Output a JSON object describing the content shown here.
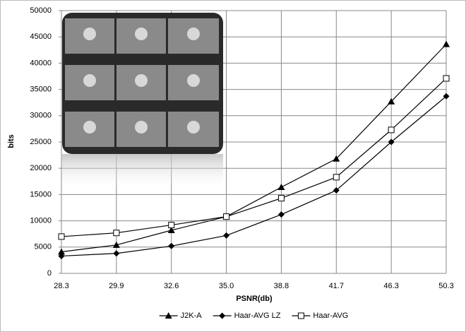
{
  "chart_data": {
    "type": "line",
    "x_label": "PSNR(db)",
    "y_label": "bits",
    "categories": [
      "28.3",
      "29.9",
      "32.6",
      "35.0",
      "38.8",
      "41.7",
      "46.3",
      "50.3"
    ],
    "series": [
      {
        "name": "J2K-A",
        "color": "#000000",
        "marker": "triangle",
        "values": [
          4100,
          5400,
          8200,
          10800,
          16400,
          21800,
          32700,
          43600
        ]
      },
      {
        "name": "Haar-AVG LZ",
        "color": "#000000",
        "marker": "diamond",
        "values": [
          3300,
          3800,
          5200,
          7200,
          11200,
          15800,
          25000,
          33700
        ]
      },
      {
        "name": "Haar-AVG",
        "color": "#000000",
        "marker": "square-open",
        "values": [
          7000,
          7700,
          9200,
          10800,
          14300,
          18300,
          27300,
          37100
        ]
      }
    ],
    "ylim": [
      0,
      50000
    ],
    "yticks": [
      0,
      5000,
      10000,
      15000,
      20000,
      25000,
      30000,
      35000,
      40000,
      45000,
      50000
    ],
    "grid": true,
    "legend": "bottom"
  }
}
